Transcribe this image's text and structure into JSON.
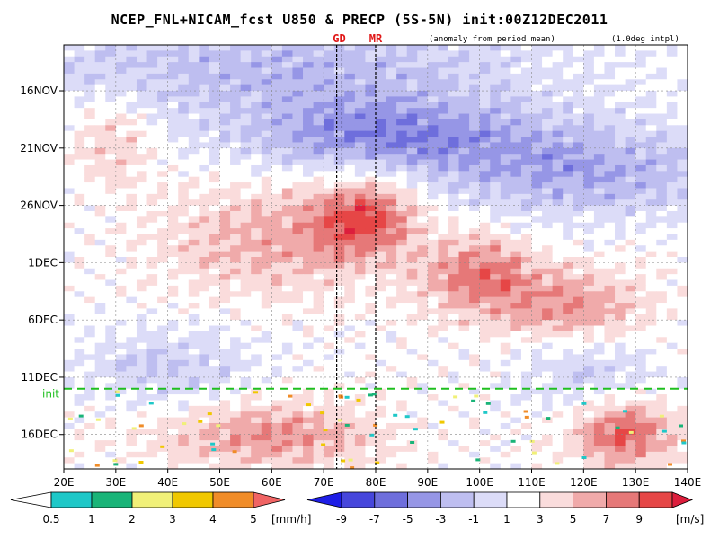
{
  "chart_data": {
    "type": "heatmap",
    "title": "NCEP_FNL+NICAM_fcst U850 & PRECP (5S-5N) init:00Z12DEC2011",
    "subtitle_left": "(anomaly from period mean)",
    "subtitle_right": "(1.0deg intpl)",
    "x_axis": {
      "range": [
        20,
        140
      ],
      "tick_values": [
        20,
        30,
        40,
        50,
        60,
        70,
        80,
        90,
        100,
        110,
        120,
        130,
        140
      ],
      "tick_labels": [
        "20E",
        "30E",
        "40E",
        "50E",
        "60E",
        "70E",
        "80E",
        "90E",
        "100E",
        "110E",
        "120E",
        "130E",
        "140E"
      ]
    },
    "y_axis": {
      "time_range": [
        "12NOV2011",
        "19DEC2011"
      ],
      "tick_labels": [
        "16NOV",
        "21NOV",
        "26NOV",
        "1DEC",
        "6DEC",
        "11DEC",
        "16DEC"
      ],
      "tick_day_index": [
        4,
        9,
        14,
        19,
        24,
        29,
        34
      ],
      "day_count": 37
    },
    "grid": true,
    "markers": [
      {
        "label": "GD",
        "longitudes": [
          72.5,
          73.5
        ]
      },
      {
        "label": "MR",
        "longitudes": [
          80.0
        ]
      }
    ],
    "init_line": {
      "label": "init",
      "day_index": 30
    },
    "u850_anomaly_features": [
      {
        "lon_center": 60,
        "day_center": 2,
        "lon_width": 80,
        "day_width": 7,
        "value": -4
      },
      {
        "lon_center": 82,
        "day_center": 8,
        "lon_width": 40,
        "day_width": 5,
        "value": -6
      },
      {
        "lon_center": 120,
        "day_center": 11,
        "lon_width": 40,
        "day_width": 6,
        "value": -5
      },
      {
        "lon_center": 30,
        "day_center": 8,
        "lon_width": 12,
        "day_width": 6,
        "value": 3
      },
      {
        "lon_center": 60,
        "day_center": 17,
        "lon_width": 30,
        "day_width": 7,
        "value": 4
      },
      {
        "lon_center": 78,
        "day_center": 15,
        "lon_width": 14,
        "day_width": 5,
        "value": 7
      },
      {
        "lon_center": 100,
        "day_center": 20,
        "lon_width": 16,
        "day_width": 5,
        "value": 6
      },
      {
        "lon_center": 118,
        "day_center": 23,
        "lon_width": 20,
        "day_width": 5,
        "value": 5
      },
      {
        "lon_center": 40,
        "day_center": 28,
        "lon_width": 25,
        "day_width": 5,
        "value": -3
      },
      {
        "lon_center": 120,
        "day_center": 28,
        "lon_width": 20,
        "day_width": 5,
        "value": -3
      },
      {
        "lon_center": 60,
        "day_center": 34,
        "lon_width": 30,
        "day_width": 4,
        "value": 5
      },
      {
        "lon_center": 128,
        "day_center": 34,
        "lon_width": 14,
        "day_width": 4,
        "value": 7
      }
    ],
    "precip_colorbar": {
      "unit": "[mm/h]",
      "labels": [
        "0.5",
        "1",
        "2",
        "3",
        "4",
        "5"
      ],
      "colors": [
        "#ffffff",
        "#1ec8c8",
        "#19b478",
        "#f0f078",
        "#f0c800",
        "#f08c28",
        "#f06464"
      ]
    },
    "u850_colorbar": {
      "unit": "[m/s]",
      "labels": [
        "-9",
        "-7",
        "-5",
        "-3",
        "-1",
        "1",
        "3",
        "5",
        "7",
        "9"
      ],
      "colors": [
        "#1e1ee6",
        "#4646dc",
        "#6e6edc",
        "#9696e6",
        "#bebef0",
        "#dcdcf8",
        "#ffffff",
        "#fadcdc",
        "#f0aaaa",
        "#e67878",
        "#e64646",
        "#dc1e3c"
      ]
    }
  }
}
